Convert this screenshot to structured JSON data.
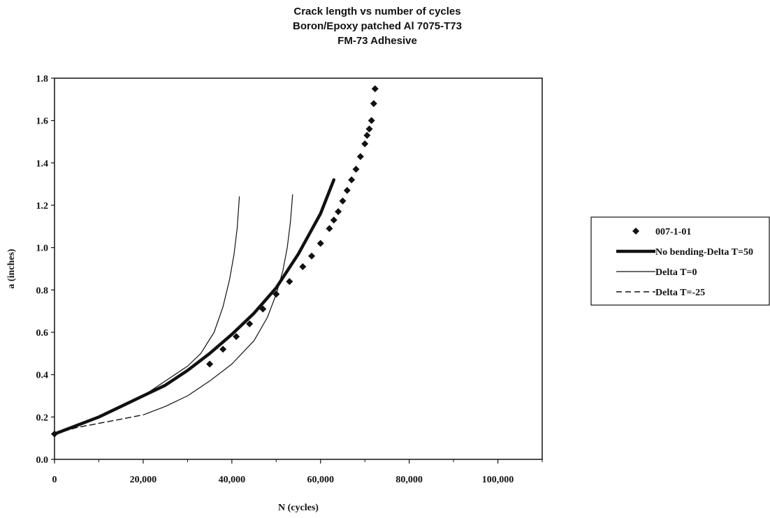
{
  "chart_data": {
    "type": "line",
    "title": [
      "Crack length vs number of cycles",
      "Boron/Epoxy patched Al 7075-T73",
      "FM-73 Adhesive"
    ],
    "xlabel": "N (cycles)",
    "ylabel": "a (inches)",
    "xlim": [
      0,
      110000
    ],
    "ylim": [
      0,
      1.8
    ],
    "x_ticks": [
      "0",
      "20,000",
      "40,000",
      "60,000",
      "80,000",
      "100,000"
    ],
    "y_ticks": [
      "0.0",
      "0.2",
      "0.4",
      "0.6",
      "0.8",
      "1.0",
      "1.2",
      "1.4",
      "1.6",
      "1.8"
    ],
    "grid": false,
    "legend_position": "right",
    "series": [
      {
        "name": "007-1-01",
        "style": "markers",
        "x": [
          0,
          35000,
          38000,
          41000,
          44000,
          47000,
          50000,
          53000,
          56000,
          58000,
          60000,
          62000,
          63000,
          64000,
          65000,
          66000,
          67000,
          68000,
          69000,
          70000,
          70500,
          71000,
          71500,
          72000,
          72300
        ],
        "y": [
          0.12,
          0.45,
          0.52,
          0.58,
          0.64,
          0.71,
          0.78,
          0.84,
          0.91,
          0.96,
          1.02,
          1.09,
          1.13,
          1.17,
          1.22,
          1.27,
          1.32,
          1.37,
          1.43,
          1.49,
          1.53,
          1.56,
          1.6,
          1.68,
          1.75
        ]
      },
      {
        "name": "No bending-Delta T=50",
        "style": "thick",
        "x": [
          0,
          5000,
          10000,
          15000,
          20000,
          25000,
          30000,
          35000,
          40000,
          45000,
          50000,
          55000,
          60000,
          63000
        ],
        "y": [
          0.12,
          0.16,
          0.2,
          0.25,
          0.3,
          0.35,
          0.42,
          0.5,
          0.59,
          0.69,
          0.81,
          0.97,
          1.16,
          1.32
        ]
      },
      {
        "name": "Delta T=0",
        "style": "thin",
        "x": [
          0,
          5000,
          10000,
          15000,
          20000,
          25000,
          30000,
          33000,
          36000,
          38000,
          39500,
          40500,
          41200,
          41700
        ],
        "y": [
          0.12,
          0.16,
          0.2,
          0.25,
          0.3,
          0.37,
          0.44,
          0.5,
          0.6,
          0.72,
          0.85,
          0.97,
          1.09,
          1.24
        ]
      },
      {
        "name": "Delta T=-25",
        "style": "dashed",
        "x": [
          0,
          5000,
          10000,
          15000,
          20000
        ],
        "y": [
          0.12,
          0.15,
          0.17,
          0.19,
          0.21
        ]
      },
      {
        "name": "",
        "style": "thin",
        "x": [
          20000,
          25000,
          30000,
          35000,
          40000,
          45000,
          48000,
          50000,
          51500,
          52500,
          53200,
          53700
        ],
        "y": [
          0.21,
          0.25,
          0.3,
          0.37,
          0.45,
          0.56,
          0.67,
          0.78,
          0.89,
          1.0,
          1.12,
          1.25
        ]
      }
    ]
  }
}
